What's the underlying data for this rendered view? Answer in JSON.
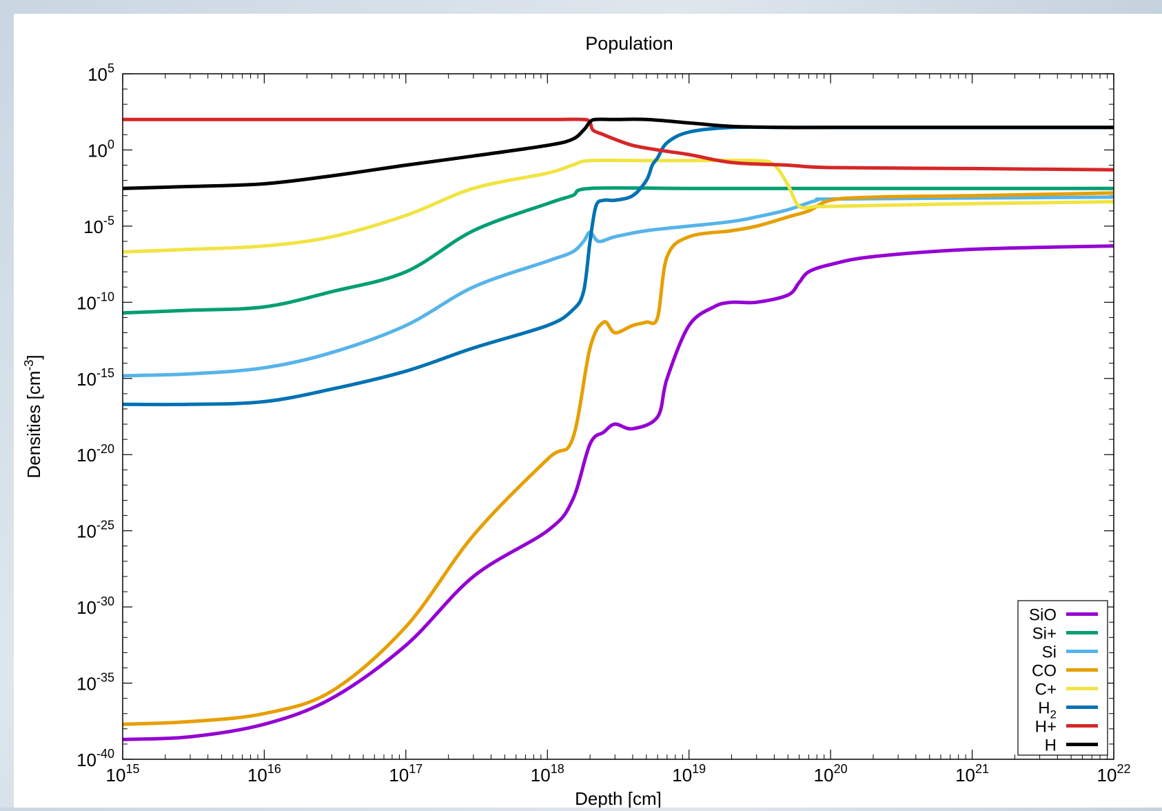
{
  "chart_data": {
    "type": "line",
    "title": "Population",
    "xlabel": "Depth [cm]",
    "ylabel_main": "Densities [cm",
    "ylabel_sup": "-3",
    "ylabel_tail": "]",
    "x_scale": "log",
    "y_scale": "log",
    "xlim": [
      1000000000000000.0,
      1e+22
    ],
    "ylim": [
      1e-40,
      100000.0
    ],
    "grid": false,
    "legend_position": "bottom-right",
    "x_ticks": [
      {
        "base": "10",
        "exp": "15",
        "value": 1000000000000000.0
      },
      {
        "base": "10",
        "exp": "16",
        "value": 1e+16
      },
      {
        "base": "10",
        "exp": "17",
        "value": 1e+17
      },
      {
        "base": "10",
        "exp": "18",
        "value": 1e+18
      },
      {
        "base": "10",
        "exp": "19",
        "value": 1e+19
      },
      {
        "base": "10",
        "exp": "20",
        "value": 1e+20
      },
      {
        "base": "10",
        "exp": "21",
        "value": 1e+21
      },
      {
        "base": "10",
        "exp": "22",
        "value": 1e+22
      }
    ],
    "y_ticks": [
      {
        "base": "10",
        "exp": "5",
        "value": 100000.0
      },
      {
        "base": "10",
        "exp": "0",
        "value": 1.0
      },
      {
        "base": "10",
        "exp": "-5",
        "value": 1e-05
      },
      {
        "base": "10",
        "exp": "-10",
        "value": 1e-10
      },
      {
        "base": "10",
        "exp": "-15",
        "value": 1e-15
      },
      {
        "base": "10",
        "exp": "-20",
        "value": 1e-20
      },
      {
        "base": "10",
        "exp": "-25",
        "value": 1e-25
      },
      {
        "base": "10",
        "exp": "-30",
        "value": 1e-30
      },
      {
        "base": "10",
        "exp": "-35",
        "value": 1e-35
      },
      {
        "base": "10",
        "exp": "-40",
        "value": 1e-40
      }
    ],
    "series": [
      {
        "name": "SiO",
        "sub": "",
        "color": "#9400d3",
        "x": [
          1000000000000000.0,
          3000000000000000.0,
          1e+16,
          3e+16,
          1e+17,
          3e+17,
          1e+18,
          1.5e+18,
          2e+18,
          2.5e+18,
          3e+18,
          4e+18,
          6e+18,
          7e+18,
          1e+19,
          1.5e+19,
          2e+19,
          3e+19,
          5e+19,
          6e+19,
          7e+19,
          1e+20,
          2e+20,
          1e+21,
          1e+22
        ],
        "y": [
          2e-39,
          3e-39,
          2e-38,
          1e-36,
          3e-33,
          1e-28,
          1e-25,
          1e-23,
          5e-20,
          3e-19,
          1e-18,
          5e-19,
          3e-18,
          1e-15,
          3e-12,
          5e-11,
          1e-10,
          1e-10,
          3e-10,
          2e-09,
          1e-08,
          3e-08,
          1e-07,
          3e-07,
          5e-07
        ]
      },
      {
        "name": "Si+",
        "sub": "",
        "color": "#009e73",
        "x": [
          1000000000000000.0,
          3000000000000000.0,
          1e+16,
          3e+16,
          1e+17,
          3e+17,
          1e+18,
          1.5e+18,
          2e+18,
          1e+19,
          1e+20,
          1e+22
        ],
        "y": [
          2e-11,
          3e-11,
          5e-11,
          5e-10,
          1e-08,
          5e-06,
          0.0003,
          0.001,
          0.003,
          0.003,
          0.003,
          0.003
        ]
      },
      {
        "name": "Si",
        "sub": "",
        "color": "#56b4e9",
        "x": [
          1000000000000000.0,
          3000000000000000.0,
          1e+16,
          3e+16,
          1e+17,
          3e+17,
          1e+18,
          1.5e+18,
          1.8e+18,
          2e+18,
          2.3e+18,
          3e+18,
          5e+18,
          1e+19,
          2e+19,
          3e+19,
          5e+19,
          8e+19,
          1e+20,
          1e+21,
          1e+22
        ],
        "y": [
          1.5e-15,
          2e-15,
          5e-15,
          5e-14,
          3e-12,
          1e-09,
          5e-08,
          2e-07,
          1e-06,
          4e-06,
          1e-06,
          2e-06,
          5e-06,
          1e-05,
          2e-05,
          4e-05,
          0.00012,
          0.0005,
          0.0006,
          0.0007,
          0.0008
        ]
      },
      {
        "name": "CO",
        "sub": "",
        "color": "#e69f00",
        "x": [
          1000000000000000.0,
          3000000000000000.0,
          1e+16,
          3e+16,
          1e+17,
          3e+17,
          1e+18,
          1.5e+18,
          2e+18,
          2.5e+18,
          3e+18,
          4e+18,
          5e+18,
          6e+18,
          7e+18,
          1e+19,
          2e+19,
          3e+19,
          5e+19,
          7e+19,
          1e+20,
          2e+20,
          1e+21,
          1e+22
        ],
        "y": [
          2e-38,
          3e-38,
          1e-37,
          3e-36,
          5e-32,
          5e-26,
          5e-21,
          1e-19,
          1e-13,
          5e-12,
          1e-12,
          3e-12,
          5e-12,
          1e-11,
          1e-07,
          2e-06,
          5e-06,
          1e-05,
          4e-05,
          0.0001,
          0.0005,
          0.0008,
          0.001,
          0.0015
        ]
      },
      {
        "name": "C+",
        "sub": "",
        "color": "#f0e442",
        "x": [
          1000000000000000.0,
          3000000000000000.0,
          1e+16,
          3e+16,
          1e+17,
          3e+17,
          1e+18,
          1.5e+18,
          2e+18,
          5e+18,
          1e+19,
          3e+19,
          4e+19,
          5e+19,
          6e+19,
          8e+19,
          1e+20,
          1e+21,
          1e+22
        ],
        "y": [
          2e-07,
          3e-07,
          5e-07,
          2e-06,
          5e-05,
          0.003,
          0.03,
          0.1,
          0.2,
          0.2,
          0.2,
          0.2,
          0.1,
          0.005,
          0.0002,
          0.0002,
          0.0002,
          0.0003,
          0.0004
        ]
      },
      {
        "name": "H",
        "sub": "2",
        "color": "#0072b2",
        "x": [
          1000000000000000.0,
          3000000000000000.0,
          1e+16,
          3e+16,
          1e+17,
          3e+17,
          1e+18,
          1.5e+18,
          1.8e+18,
          2e+18,
          2.2e+18,
          2.5e+18,
          3e+18,
          4e+18,
          5e+18,
          5.5e+18,
          6e+18,
          7e+18,
          1e+19,
          2e+19,
          5e+19,
          1e+20,
          1e+21,
          1e+22
        ],
        "y": [
          2e-17,
          2e-17,
          3e-17,
          2e-16,
          3e-15,
          1e-13,
          3e-12,
          3e-11,
          5e-10,
          1e-06,
          0.0002,
          0.0005,
          0.0005,
          0.001,
          0.01,
          0.1,
          0.3,
          3,
          15,
          30,
          30,
          30,
          30,
          30
        ]
      },
      {
        "name": "H+",
        "sub": "",
        "color": "#d62728",
        "x": [
          1000000000000000.0,
          1e+16,
          1e+17,
          1e+18,
          1.8e+18,
          2e+18,
          2.1e+18,
          2.5e+18,
          3e+18,
          4e+18,
          6e+18,
          1e+19,
          2e+19,
          5e+19,
          1e+20,
          1e+21,
          1e+22
        ],
        "y": [
          100,
          100,
          100,
          100,
          100,
          60,
          20,
          10,
          5,
          2,
          1,
          0.5,
          0.15,
          0.1,
          0.07,
          0.06,
          0.05
        ]
      },
      {
        "name": "H",
        "sub": "",
        "color": "#000000",
        "x": [
          1000000000000000.0,
          3000000000000000.0,
          1e+16,
          3e+16,
          1e+17,
          3e+17,
          1e+18,
          1.5e+18,
          1.8e+18,
          2e+18,
          2.2e+18,
          3e+18,
          5e+18,
          1e+19,
          2e+19,
          5e+19,
          1e+20,
          1e+22
        ],
        "y": [
          0.003,
          0.004,
          0.006,
          0.02,
          0.1,
          0.4,
          2,
          5,
          20,
          70,
          100,
          100,
          100,
          60,
          35,
          30,
          30,
          30
        ]
      }
    ]
  }
}
